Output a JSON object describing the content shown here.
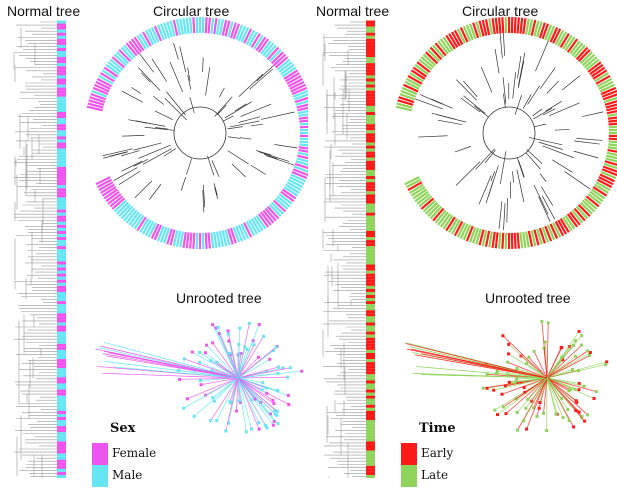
{
  "panels": [
    {
      "normal_title": "Normal tree",
      "circular_title": "Circular tree",
      "unrooted_title": "Unrooted tree",
      "legend": {
        "title": "Sex",
        "items": [
          {
            "label": "Female",
            "color": "#ee55ee"
          },
          {
            "label": "Male",
            "color": "#66e6f2"
          }
        ]
      }
    },
    {
      "normal_title": "Normal tree",
      "circular_title": "Circular tree",
      "unrooted_title": "Unrooted tree",
      "legend": {
        "title": "Time",
        "items": [
          {
            "label": "Early",
            "color": "#ff1a1a"
          },
          {
            "label": "Late",
            "color": "#8fd45a"
          }
        ]
      }
    }
  ]
}
